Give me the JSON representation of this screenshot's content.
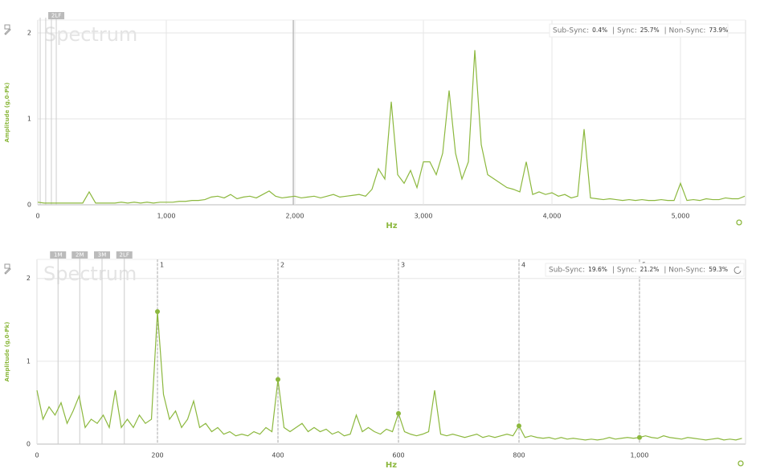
{
  "chart_data": [
    {
      "type": "line",
      "watermark": "Spectrum",
      "y_label": "Amplitude (g,0-Pk)",
      "x_label": "Hz",
      "color": "#8cb83e",
      "grid": true,
      "xlim": [
        0,
        5506
      ],
      "ylim": [
        0,
        2.15
      ],
      "xticks": [
        0,
        {
          "value": 1000,
          "label": "1,000"
        },
        {
          "value": 2000,
          "label": "2,000"
        },
        {
          "value": 3000,
          "label": "3,000"
        },
        {
          "value": 4000,
          "label": "4,000"
        },
        {
          "value": 5000,
          "label": "5,000"
        }
      ],
      "yticks": [
        0,
        1,
        2
      ],
      "cursor_x": 1988,
      "markers": [
        {
          "x": 19
        },
        {
          "x": 62
        },
        {
          "x": 106
        },
        {
          "x": 144,
          "label": "2LF"
        }
      ],
      "sync_summary": [
        {
          "name": "Sub-Sync:",
          "value": "0.4%"
        },
        {
          "name": "| Sync:",
          "value": "25.7%"
        },
        {
          "name": "| Non-Sync:",
          "value": "73.9%"
        }
      ],
      "x": [
        0,
        50,
        100,
        150,
        200,
        250,
        300,
        350,
        400,
        450,
        500,
        550,
        600,
        650,
        700,
        750,
        800,
        850,
        900,
        950,
        1000,
        1050,
        1100,
        1150,
        1200,
        1250,
        1300,
        1350,
        1400,
        1450,
        1500,
        1550,
        1600,
        1650,
        1700,
        1750,
        1800,
        1850,
        1900,
        1950,
        2000,
        2050,
        2100,
        2150,
        2200,
        2250,
        2300,
        2350,
        2400,
        2450,
        2500,
        2550,
        2600,
        2650,
        2700,
        2750,
        2800,
        2850,
        2900,
        2950,
        3000,
        3050,
        3100,
        3150,
        3200,
        3250,
        3300,
        3350,
        3400,
        3450,
        3500,
        3550,
        3600,
        3650,
        3700,
        3750,
        3800,
        3850,
        3900,
        3950,
        4000,
        4050,
        4100,
        4150,
        4200,
        4250,
        4300,
        4350,
        4400,
        4450,
        4500,
        4550,
        4600,
        4650,
        4700,
        4750,
        4800,
        4850,
        4900,
        4950,
        5000,
        5050,
        5100,
        5150,
        5200,
        5250,
        5300,
        5350,
        5400,
        5450,
        5500
      ],
      "values": [
        0.03,
        0.02,
        0.02,
        0.02,
        0.02,
        0.02,
        0.02,
        0.02,
        0.15,
        0.02,
        0.02,
        0.02,
        0.02,
        0.03,
        0.02,
        0.03,
        0.02,
        0.03,
        0.02,
        0.03,
        0.03,
        0.03,
        0.04,
        0.04,
        0.05,
        0.05,
        0.06,
        0.09,
        0.1,
        0.08,
        0.12,
        0.07,
        0.09,
        0.1,
        0.08,
        0.12,
        0.16,
        0.1,
        0.08,
        0.09,
        0.1,
        0.08,
        0.09,
        0.1,
        0.08,
        0.1,
        0.12,
        0.09,
        0.1,
        0.11,
        0.12,
        0.1,
        0.18,
        0.42,
        0.3,
        1.2,
        0.35,
        0.25,
        0.4,
        0.2,
        0.5,
        0.5,
        0.35,
        0.6,
        1.33,
        0.6,
        0.3,
        0.5,
        1.8,
        0.7,
        0.35,
        0.3,
        0.25,
        0.2,
        0.18,
        0.15,
        0.5,
        0.12,
        0.15,
        0.12,
        0.14,
        0.1,
        0.12,
        0.08,
        0.1,
        0.88,
        0.08,
        0.07,
        0.06,
        0.07,
        0.06,
        0.05,
        0.06,
        0.05,
        0.06,
        0.05,
        0.05,
        0.06,
        0.05,
        0.05,
        0.25,
        0.05,
        0.06,
        0.05,
        0.07,
        0.06,
        0.06,
        0.08,
        0.07,
        0.07,
        0.1
      ]
    },
    {
      "type": "line",
      "watermark": "Spectrum",
      "y_label": "Amplitude (g,0-Pk)",
      "x_label": "Hz",
      "color": "#8cb83e",
      "grid": true,
      "xlim": [
        0,
        1176
      ],
      "ylim": [
        0,
        2.23
      ],
      "xticks": [
        0,
        200,
        400,
        600,
        800,
        {
          "value": 1000,
          "label": "1,000"
        }
      ],
      "yticks": [
        0,
        1,
        2
      ],
      "markers": [
        {
          "x": 35,
          "label": "1M"
        },
        {
          "x": 71,
          "label": "2M"
        },
        {
          "x": 108,
          "label": "3M"
        },
        {
          "x": 145,
          "label": "2LF"
        }
      ],
      "harmonics": [
        {
          "label": "1",
          "x": 200,
          "value": 1.6
        },
        {
          "label": "2",
          "x": 400,
          "value": 0.78
        },
        {
          "label": "3",
          "x": 600,
          "value": 0.37
        },
        {
          "label": "4",
          "x": 800,
          "value": 0.22
        },
        {
          "label": "5",
          "x": 1000,
          "value": 0.08
        }
      ],
      "sync_summary": [
        {
          "name": "Sub-Sync:",
          "value": "19.6%"
        },
        {
          "name": "| Sync:",
          "value": "21.2%"
        },
        {
          "name": "| Non-Sync:",
          "value": "59.3%"
        }
      ],
      "x": [
        0,
        10,
        20,
        30,
        40,
        50,
        60,
        70,
        80,
        90,
        100,
        110,
        120,
        130,
        140,
        150,
        160,
        170,
        180,
        190,
        200,
        210,
        220,
        230,
        240,
        250,
        260,
        270,
        280,
        290,
        300,
        310,
        320,
        330,
        340,
        350,
        360,
        370,
        380,
        390,
        400,
        410,
        420,
        430,
        440,
        450,
        460,
        470,
        480,
        490,
        500,
        510,
        520,
        530,
        540,
        550,
        560,
        570,
        580,
        590,
        600,
        610,
        620,
        630,
        640,
        650,
        660,
        670,
        680,
        690,
        700,
        710,
        720,
        730,
        740,
        750,
        760,
        770,
        780,
        790,
        800,
        810,
        820,
        830,
        840,
        850,
        860,
        870,
        880,
        890,
        900,
        910,
        920,
        930,
        940,
        950,
        960,
        970,
        980,
        990,
        1000,
        1010,
        1020,
        1030,
        1040,
        1050,
        1060,
        1070,
        1080,
        1090,
        1100,
        1110,
        1120,
        1130,
        1140,
        1150,
        1160,
        1170
      ],
      "values": [
        0.65,
        0.3,
        0.45,
        0.35,
        0.5,
        0.25,
        0.4,
        0.58,
        0.2,
        0.3,
        0.25,
        0.35,
        0.2,
        0.65,
        0.2,
        0.3,
        0.2,
        0.35,
        0.25,
        0.3,
        1.6,
        0.6,
        0.3,
        0.4,
        0.2,
        0.3,
        0.52,
        0.2,
        0.25,
        0.15,
        0.2,
        0.12,
        0.15,
        0.1,
        0.12,
        0.1,
        0.15,
        0.12,
        0.2,
        0.15,
        0.78,
        0.2,
        0.15,
        0.2,
        0.25,
        0.15,
        0.2,
        0.15,
        0.18,
        0.12,
        0.15,
        0.1,
        0.12,
        0.35,
        0.15,
        0.2,
        0.15,
        0.12,
        0.18,
        0.15,
        0.37,
        0.15,
        0.12,
        0.1,
        0.12,
        0.15,
        0.65,
        0.12,
        0.1,
        0.12,
        0.1,
        0.08,
        0.1,
        0.12,
        0.08,
        0.1,
        0.08,
        0.1,
        0.12,
        0.1,
        0.22,
        0.08,
        0.1,
        0.08,
        0.07,
        0.08,
        0.06,
        0.08,
        0.06,
        0.07,
        0.06,
        0.05,
        0.06,
        0.05,
        0.06,
        0.08,
        0.06,
        0.07,
        0.08,
        0.07,
        0.08,
        0.1,
        0.08,
        0.07,
        0.1,
        0.08,
        0.07,
        0.06,
        0.08,
        0.07,
        0.06,
        0.05,
        0.06,
        0.07,
        0.05,
        0.06,
        0.05,
        0.07
      ]
    }
  ]
}
